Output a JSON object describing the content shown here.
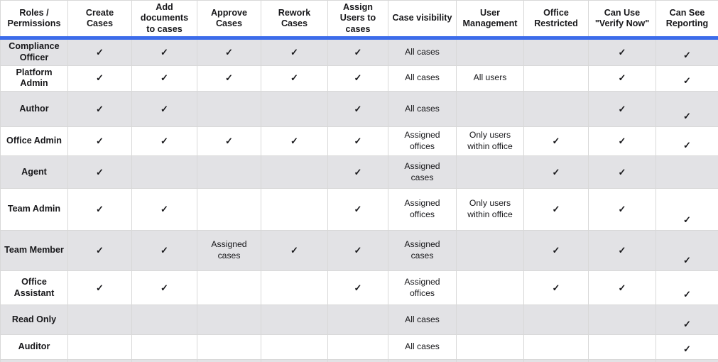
{
  "colors": {
    "accent_blue": "#3c6cea",
    "row_stripe_gray": "#e2e2e5",
    "cell_border": "#d8d8d8",
    "text": "#17171a"
  },
  "table": {
    "columns": [
      "Roles / Permissions",
      "Create Cases",
      "Add documents to cases",
      "Approve Cases",
      "Rework Cases",
      "Assign Users to cases",
      "Case visibility",
      "User Management",
      "Office Restricted",
      "Can Use \"Verify Now\"",
      "Can See Reporting"
    ],
    "check_glyph": "✓",
    "rows": [
      {
        "role": "Compliance Officer",
        "cells": [
          "✓",
          "✓",
          "✓",
          "✓",
          "✓",
          "All cases",
          "",
          "",
          "✓",
          "✓"
        ]
      },
      {
        "role": "Platform Admin",
        "cells": [
          "✓",
          "✓",
          "✓",
          "✓",
          "✓",
          "All cases",
          "All users",
          "",
          "✓",
          "✓"
        ]
      },
      {
        "role": "Author",
        "cells": [
          "✓",
          "✓",
          "",
          "",
          "✓",
          "All cases",
          "",
          "",
          "✓",
          "✓"
        ]
      },
      {
        "role": "Office Admin",
        "cells": [
          "✓",
          "✓",
          "✓",
          "✓",
          "✓",
          "Assigned offices",
          "Only users within office",
          "✓",
          "✓",
          "✓"
        ]
      },
      {
        "role": "Agent",
        "cells": [
          "✓",
          "",
          "",
          "",
          "✓",
          "Assigned cases",
          "",
          "✓",
          "✓",
          ""
        ]
      },
      {
        "role": "Team Admin",
        "cells": [
          "✓",
          "✓",
          "",
          "",
          "✓",
          "Assigned offices",
          "Only users within office",
          "✓",
          "✓",
          "✓"
        ]
      },
      {
        "role": "Team Member",
        "cells": [
          "✓",
          "✓",
          "Assigned cases",
          "✓",
          "✓",
          "Assigned cases",
          "",
          "✓",
          "✓",
          "✓"
        ]
      },
      {
        "role": "Office Assistant",
        "cells": [
          "✓",
          "✓",
          "",
          "",
          "✓",
          "Assigned offices",
          "",
          "✓",
          "✓",
          "✓"
        ]
      },
      {
        "role": "Read Only",
        "cells": [
          "",
          "",
          "",
          "",
          "",
          "All cases",
          "",
          "",
          "",
          "✓"
        ]
      },
      {
        "role": "Auditor",
        "cells": [
          "",
          "",
          "",
          "",
          "",
          "All cases",
          "",
          "",
          "",
          "✓"
        ]
      }
    ]
  }
}
